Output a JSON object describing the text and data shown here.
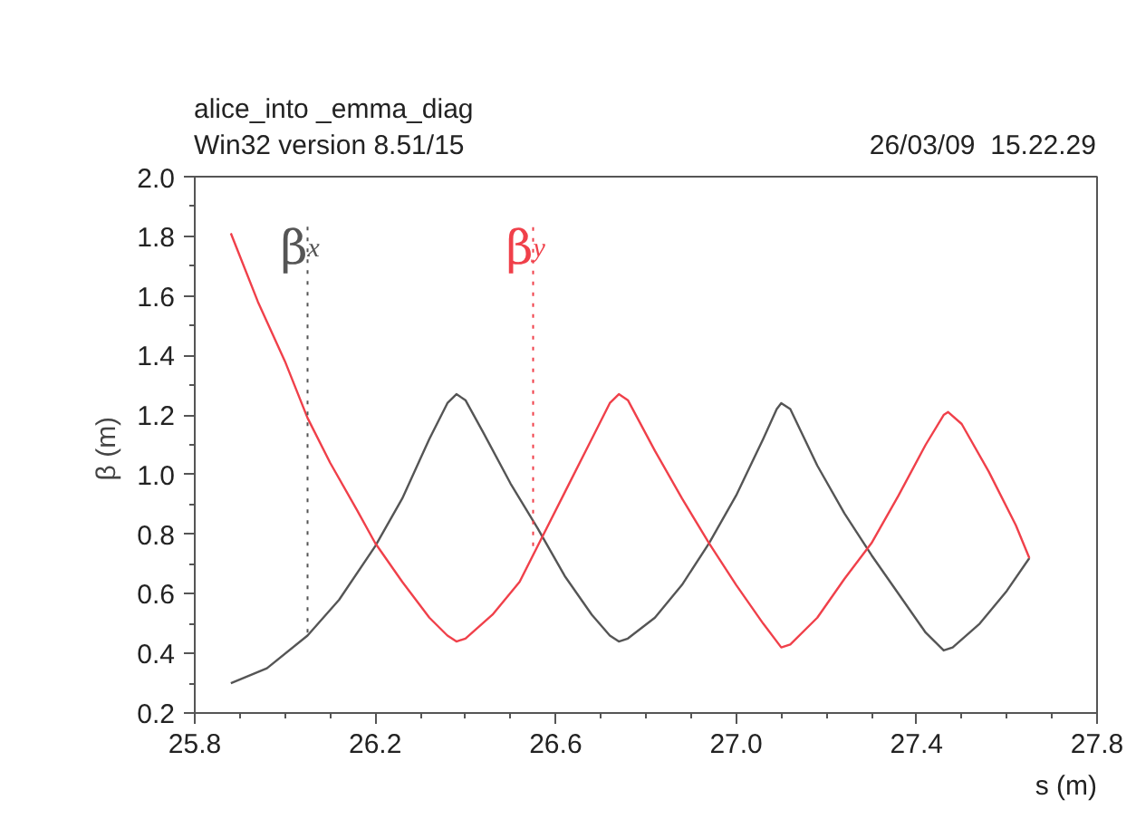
{
  "chart_data": {
    "type": "line",
    "title": "alice_into _emma_diag",
    "subtitle": "Win32 version 8.51/15",
    "xlabel": "s (m)",
    "ylabel": "β  (m)",
    "annotations": [
      {
        "text": "β$_{x}$",
        "x": 26.05,
        "y": 0.47
      },
      {
        "text": "β$_{y}$",
        "x": 26.55,
        "y": 0.76
      },
      "26/03/09  15.22.29"
    ],
    "xlim": [
      25.8,
      27.8
    ],
    "xticks": [
      25.8,
      26.2,
      26.6,
      {
        "value": 27,
        "label": "27.0"
      },
      27.4,
      27.8
    ],
    "ylim": [
      0.2,
      2.0
    ],
    "yticks": [
      0.2,
      0.4,
      0.6,
      0.8,
      {
        "value": 1,
        "label": "1.0"
      },
      1.2,
      1.4,
      1.6,
      1.8,
      {
        "value": 2,
        "label": "2.0"
      }
    ],
    "grid": false,
    "line_style": "solid",
    "series": [
      {
        "color": "#555555",
        "x": [
          25.88,
          25.96,
          26.05,
          26.12,
          26.2,
          26.26,
          26.32,
          26.36,
          26.38,
          26.4,
          26.44,
          26.5,
          26.56,
          26.62,
          26.68,
          26.72,
          26.74,
          26.76,
          26.82,
          26.88,
          26.94,
          27.0,
          27.06,
          27.09,
          27.1,
          27.12,
          27.18,
          27.24,
          27.3,
          27.36,
          27.42,
          27.46,
          27.48,
          27.54,
          27.6,
          27.65
        ],
        "values": [
          0.3,
          0.35,
          0.46,
          0.58,
          0.76,
          0.92,
          1.12,
          1.24,
          1.27,
          1.25,
          1.14,
          0.97,
          0.82,
          0.66,
          0.53,
          0.46,
          0.44,
          0.45,
          0.52,
          0.63,
          0.77,
          0.93,
          1.12,
          1.22,
          1.24,
          1.22,
          1.03,
          0.87,
          0.73,
          0.6,
          0.47,
          0.41,
          0.42,
          0.5,
          0.61,
          0.72
        ]
      },
      {
        "color": "#f0404a",
        "x": [
          25.88,
          25.94,
          26.0,
          26.05,
          26.1,
          26.16,
          26.2,
          26.26,
          26.32,
          26.36,
          26.38,
          26.4,
          26.46,
          26.52,
          26.56,
          26.62,
          26.68,
          26.72,
          26.74,
          26.76,
          26.82,
          26.88,
          26.94,
          27.0,
          27.06,
          27.1,
          27.12,
          27.18,
          27.24,
          27.3,
          27.36,
          27.42,
          27.46,
          27.47,
          27.5,
          27.56,
          27.62,
          27.65
        ],
        "values": [
          1.81,
          1.58,
          1.38,
          1.19,
          1.04,
          0.88,
          0.77,
          0.64,
          0.52,
          0.46,
          0.44,
          0.45,
          0.53,
          0.64,
          0.76,
          0.94,
          1.12,
          1.24,
          1.27,
          1.25,
          1.08,
          0.92,
          0.77,
          0.63,
          0.5,
          0.42,
          0.43,
          0.52,
          0.65,
          0.77,
          0.93,
          1.1,
          1.2,
          1.21,
          1.17,
          1.01,
          0.83,
          0.72
        ]
      }
    ]
  }
}
